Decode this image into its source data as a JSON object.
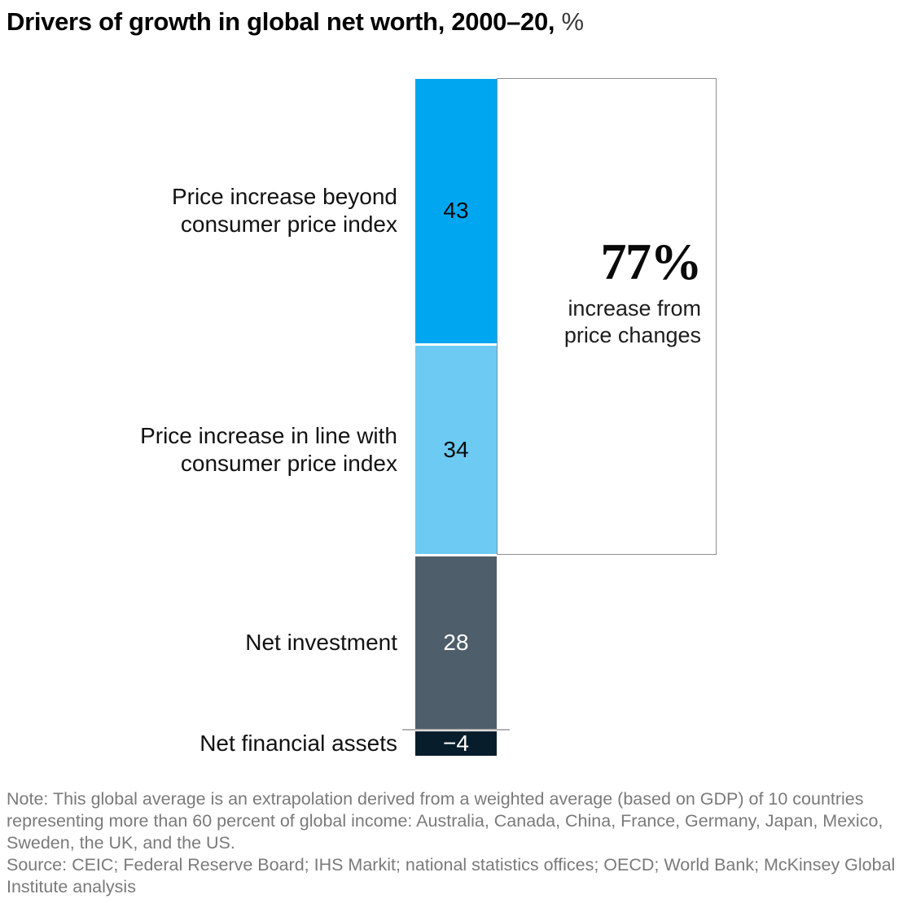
{
  "title": {
    "main": "Drivers of growth in global net worth, 2000–20,",
    "unit": " %"
  },
  "chart_data": {
    "type": "bar",
    "subtype": "single-stacked-vertical-bar",
    "title": "Drivers of growth in global net worth, 2000–20",
    "unit": "%",
    "categories": [
      "Price increase beyond consumer price index",
      "Price increase in line with consumer price index",
      "Net investment",
      "Net financial assets"
    ],
    "values": [
      43,
      34,
      28,
      -4
    ],
    "segments": [
      {
        "label": "Price increase beyond\nconsumer price index",
        "value": 43,
        "value_label": "43",
        "color": "#00A7F0",
        "text_color": "#0a0a0a"
      },
      {
        "label": "Price increase in line with\nconsumer price index",
        "value": 34,
        "value_label": "34",
        "color": "#6CCAF3",
        "text_color": "#0a0a0a"
      },
      {
        "label": "Net investment",
        "value": 28,
        "value_label": "28",
        "color": "#4E5E6A",
        "text_color": "#ffffff"
      },
      {
        "label": "Net financial assets",
        "value": -4,
        "value_label": "−4",
        "color": "#071D2C",
        "text_color": "#ffffff"
      }
    ],
    "annotation": {
      "headline": "77%",
      "subtext": "increase from\nprice changes"
    },
    "legend": "none",
    "grid": false
  },
  "colors": {
    "box_border": "#8F8F8F",
    "zero_line": "#B3B3B3",
    "note_text": "#7A7A7A"
  },
  "footer": {
    "note": "Note: This global average is an extrapolation derived from a weighted average (based on GDP) of 10 countries representing more than 60 percent of global income: Australia, Canada, China, France, Germany, Japan, Mexico, Sweden, the UK, and the US.",
    "source": "Source: CEIC; Federal Reserve Board; IHS Markit; national statistics offices; OECD; World Bank; McKinsey Global Institute analysis"
  }
}
